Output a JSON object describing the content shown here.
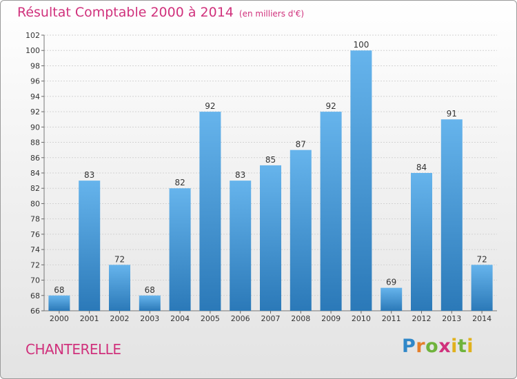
{
  "header": {
    "title": "Résultat Comptable 2000 à 2014",
    "subtitle": "(en milliers d'€)"
  },
  "commune": "CHANTERELLE",
  "logo": {
    "letters": [
      "P",
      "r",
      "o",
      "x",
      "i",
      "t",
      "i"
    ]
  },
  "colors": {
    "accent": "#d0317c",
    "bar_top": "#66b4ec",
    "bar_bottom": "#2b79b8"
  },
  "chart_data": {
    "type": "bar",
    "title": "Résultat Comptable 2000 à 2014",
    "subtitle": "(en milliers d'€)",
    "categories": [
      "2000",
      "2001",
      "2002",
      "2003",
      "2004",
      "2005",
      "2006",
      "2007",
      "2008",
      "2009",
      "2010",
      "2011",
      "2012",
      "2013",
      "2014"
    ],
    "values": [
      68,
      83,
      72,
      68,
      82,
      92,
      83,
      85,
      87,
      92,
      100,
      69,
      84,
      91,
      72
    ],
    "ylim": [
      66,
      102
    ],
    "yticks": [
      66,
      68,
      70,
      72,
      74,
      76,
      78,
      80,
      82,
      84,
      86,
      88,
      90,
      92,
      94,
      96,
      98,
      100,
      102
    ],
    "xlabel": "",
    "ylabel": "",
    "grid": true,
    "legend": "none"
  }
}
